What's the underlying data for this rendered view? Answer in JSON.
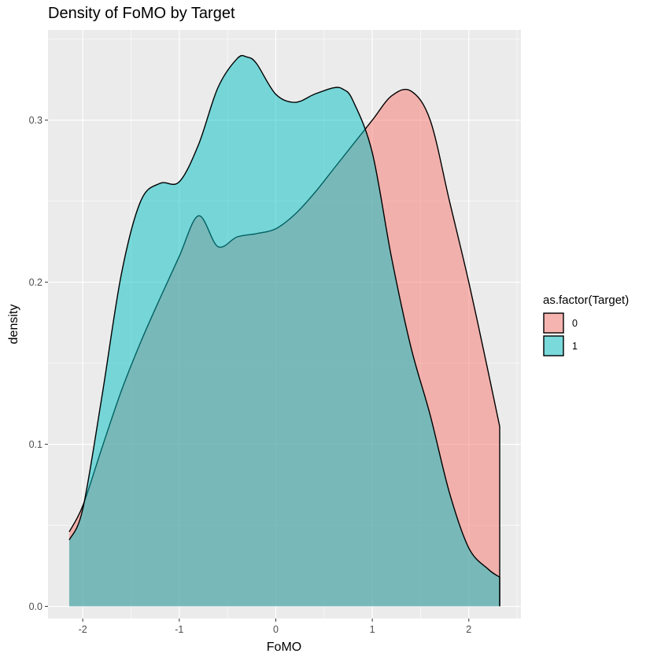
{
  "chart_data": {
    "type": "area",
    "title": "Density of FoMO by Target",
    "xlabel": "FoMO",
    "ylabel": "density",
    "xlim": [
      -2.36,
      2.54
    ],
    "ylim": [
      -0.0075,
      0.3557
    ],
    "x_ticks": [
      -2,
      -1,
      0,
      1,
      2
    ],
    "x_tick_labels": [
      "-2",
      "-1",
      "0",
      "1",
      "2"
    ],
    "y_ticks": [
      0.0,
      0.1,
      0.2,
      0.3
    ],
    "y_tick_labels": [
      "0.0",
      "0.1",
      "0.2",
      "0.3"
    ],
    "grid": true,
    "legend": {
      "title": "as.factor(Target)",
      "position": "right"
    },
    "series": [
      {
        "name": "0",
        "color": "#F8766D",
        "fill_opacity": 0.5,
        "x": [
          -2.14,
          -2.0,
          -1.8,
          -1.6,
          -1.4,
          -1.2,
          -1.0,
          -0.8,
          -0.6,
          -0.4,
          -0.2,
          0.0,
          0.2,
          0.4,
          0.6,
          0.8,
          1.0,
          1.2,
          1.4,
          1.6,
          1.8,
          2.0,
          2.2,
          2.32
        ],
        "y": [
          0.046,
          0.062,
          0.098,
          0.133,
          0.163,
          0.19,
          0.216,
          0.241,
          0.222,
          0.228,
          0.23,
          0.233,
          0.242,
          0.255,
          0.27,
          0.285,
          0.3,
          0.315,
          0.318,
          0.3,
          0.25,
          0.2,
          0.145,
          0.111
        ]
      },
      {
        "name": "1",
        "color": "#00BFC4",
        "fill_opacity": 0.5,
        "x": [
          -2.14,
          -2.0,
          -1.8,
          -1.6,
          -1.4,
          -1.2,
          -1.0,
          -0.8,
          -0.6,
          -0.4,
          -0.3,
          -0.2,
          0.0,
          0.2,
          0.4,
          0.6,
          0.7,
          0.8,
          1.0,
          1.2,
          1.4,
          1.6,
          1.8,
          2.0,
          2.2,
          2.32
        ],
        "y": [
          0.041,
          0.06,
          0.13,
          0.205,
          0.25,
          0.261,
          0.262,
          0.285,
          0.32,
          0.338,
          0.339,
          0.335,
          0.316,
          0.311,
          0.316,
          0.32,
          0.319,
          0.312,
          0.28,
          0.215,
          0.16,
          0.118,
          0.07,
          0.036,
          0.023,
          0.018
        ]
      }
    ]
  }
}
